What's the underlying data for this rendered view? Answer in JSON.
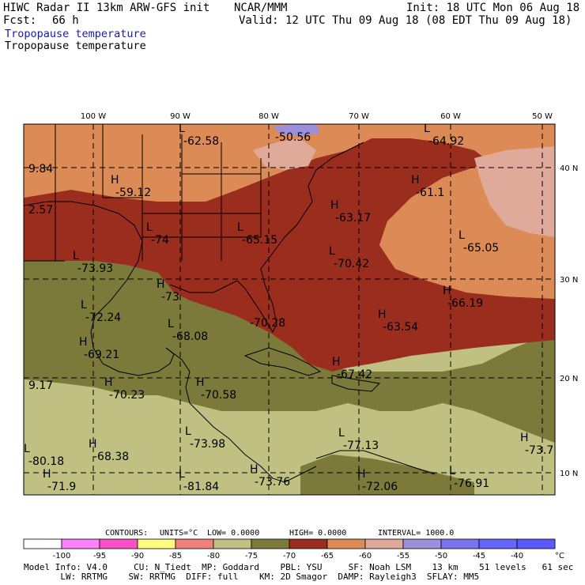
{
  "header": {
    "title": "HIWC Radar II 13km ARW-GFS init",
    "org": "NCAR/MMM",
    "init": "Init: 18 UTC Mon 06 Aug 18",
    "fcst_label": "Fcst:",
    "fcst_value": "66 h",
    "valid": "Valid: 12 UTC Thu 09 Aug 18 (08 EDT Thu 09 Aug 18)",
    "field_title_1": "Tropopause temperature",
    "field_title_2": "Tropopause temperature"
  },
  "map": {
    "lon_labels": [
      "100 W",
      "90 W",
      "80 W",
      "70 W",
      "60 W",
      "50 W"
    ],
    "lat_labels": [
      "40 N",
      "30 N",
      "20 N",
      "10 N"
    ],
    "colors": {
      "background": "#ffffff",
      "lt_m80": "#c0c083",
      "m80_m75": "#c0c083",
      "m75_m70": "#7b7a3a",
      "m70_m65": "#9b2d1f",
      "m65_m60": "#dc8a56",
      "m60_m55": "#dfaa99",
      "m55_m50": "#9c8fdb",
      "outline": "#000000"
    },
    "extrema": [
      {
        "type": "L",
        "value": "-62.58"
      },
      {
        "type": "",
        "value": "-50.56"
      },
      {
        "type": "L",
        "value": "-64.92"
      },
      {
        "type": "",
        "value": "9.84"
      },
      {
        "type": "H",
        "value": "-59.12"
      },
      {
        "type": "H",
        "value": "-61.1"
      },
      {
        "type": "",
        "value": "2.57"
      },
      {
        "type": "H",
        "value": "-63.17"
      },
      {
        "type": "L",
        "value": "-74"
      },
      {
        "type": "L",
        "value": "-65.15"
      },
      {
        "type": "L",
        "value": "-65.05"
      },
      {
        "type": "L",
        "value": "-73.93"
      },
      {
        "type": "L",
        "value": "-70.42"
      },
      {
        "type": "H",
        "value": "-66.19"
      },
      {
        "type": "H",
        "value": "-73"
      },
      {
        "type": "L",
        "value": "-72.24"
      },
      {
        "type": "H",
        "value": "-63.54"
      },
      {
        "type": "",
        "value": "-70.28"
      },
      {
        "type": "L",
        "value": "-68.08"
      },
      {
        "type": "H",
        "value": "-69.21"
      },
      {
        "type": "H",
        "value": "-67.42"
      },
      {
        "type": "",
        "value": "9.17"
      },
      {
        "type": "H",
        "value": "-70.23"
      },
      {
        "type": "H",
        "value": "-70.58"
      },
      {
        "type": "H",
        "value": "-73.7"
      },
      {
        "type": "L",
        "value": "-80.18"
      },
      {
        "type": "H",
        "value": "-68.38"
      },
      {
        "type": "L",
        "value": "-73.98"
      },
      {
        "type": "L",
        "value": "-77.13"
      },
      {
        "type": "H",
        "value": "-73.76"
      },
      {
        "type": "L",
        "value": "-76.91"
      },
      {
        "type": "H",
        "value": "-71.9"
      },
      {
        "type": "L",
        "value": "-81.84"
      },
      {
        "type": "H",
        "value": "-72.06"
      }
    ]
  },
  "contours": {
    "label": "CONTOURS:",
    "units": "UNITS=°C",
    "low": "LOW=  0.0000",
    "high": "HIGH=  0.0000",
    "interval": "INTERVAL=   1000.0"
  },
  "colorbar": {
    "ticks": [
      "-100",
      "-95",
      "-90",
      "-85",
      "-80",
      "-75",
      "-70",
      "-65",
      "-60",
      "-55",
      "-50",
      "-45",
      "-40"
    ],
    "unit": "°C",
    "colors": [
      "#ffffff",
      "#ff80ff",
      "#ff50c8",
      "#ffff80",
      "#f08080",
      "#c0c083",
      "#7b7a3a",
      "#9b2d1f",
      "#dc8a56",
      "#dfaa99",
      "#9c8fdb",
      "#7a74f0",
      "#6666ff",
      "#5a5aff"
    ]
  },
  "model_info": {
    "line1": "Model Info: V4.0     CU: N_Tiedt  MP: Goddard    PBL: YSU     SF: Noah LSM    13 km    51 levels   61 sec",
    "line2": "       LW: RRTMG    SW: RRTMG  DIFF: full    KM: 2D Smagor  DAMP: Rayleigh3  SFLAY: MM5"
  }
}
